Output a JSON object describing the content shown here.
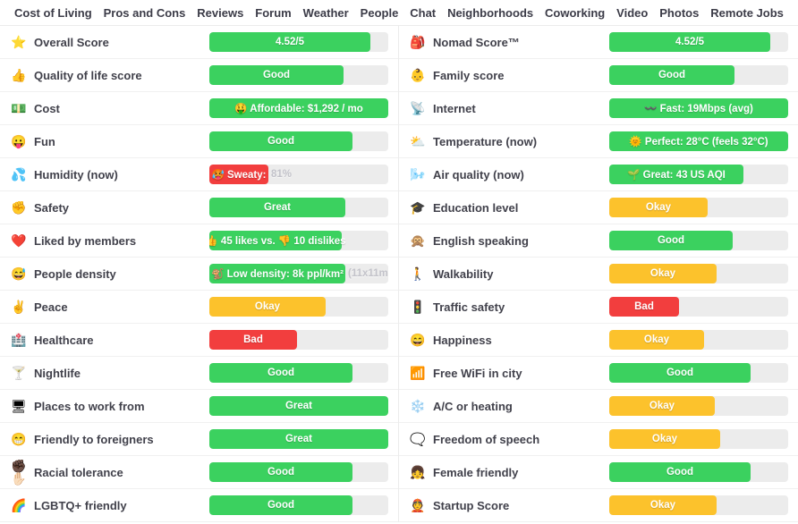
{
  "nav": {
    "items": [
      "Cost of Living",
      "Pros and Cons",
      "Reviews",
      "Forum",
      "Weather",
      "People",
      "Chat",
      "Neighborhoods",
      "Coworking",
      "Video",
      "Photos",
      "Remote Jobs"
    ]
  },
  "colors": {
    "green": "#3bd15f",
    "yellow": "#fcc22c",
    "red": "#f23e3e",
    "track": "#ececec",
    "overflow_text": "#c3c3ca"
  },
  "columns": {
    "left": [
      {
        "icon": "⭐",
        "icon_name": "star-icon",
        "label": "Overall Score",
        "value": "4.52/5",
        "color": "green",
        "fill": 90
      },
      {
        "icon": "👍",
        "icon_name": "thumbs-up-icon",
        "label": "Quality of life score",
        "value": "Good",
        "color": "green",
        "fill": 75
      },
      {
        "icon": "💵",
        "icon_name": "banknote-icon",
        "label": "Cost",
        "value": "🤑 Affordable: $1,292 / mo",
        "color": "green",
        "fill": 100
      },
      {
        "icon": "😛",
        "icon_name": "fun-face-icon",
        "label": "Fun",
        "value": "Good",
        "color": "green",
        "fill": 80
      },
      {
        "icon": "💦",
        "icon_name": "sweat-drops-icon",
        "label": "Humidity (now)",
        "value": "🥵 Sweaty:",
        "color": "red",
        "fill": 33,
        "overflow": "81%"
      },
      {
        "icon": "✊",
        "icon_name": "fist-icon",
        "label": "Safety",
        "value": "Great",
        "color": "green",
        "fill": 76
      },
      {
        "icon": "❤️",
        "icon_name": "heart-icon",
        "label": "Liked by members",
        "value": "👍 45 likes vs. 👎 10 dislikes",
        "color": "green",
        "fill": 74
      },
      {
        "icon": "😅",
        "icon_name": "sweat-smile-icon",
        "label": "People density",
        "value": "🐒 Low density: 8k ppl/km²",
        "color": "green",
        "fill": 76,
        "overflow": "(11x11m"
      },
      {
        "icon": "✌️",
        "icon_name": "peace-hand-icon",
        "label": "Peace",
        "value": "Okay",
        "color": "yellow",
        "fill": 65
      },
      {
        "icon": "🏥",
        "icon_name": "hospital-icon",
        "label": "Healthcare",
        "value": "Bad",
        "color": "red",
        "fill": 49
      },
      {
        "icon": "🍸",
        "icon_name": "cocktail-icon",
        "label": "Nightlife",
        "value": "Good",
        "color": "green",
        "fill": 80
      },
      {
        "icon": "🖥",
        "icon_name": "computer-icon",
        "label": "Places to work from",
        "value": "Great",
        "color": "green",
        "fill": 100
      },
      {
        "icon": "😁",
        "icon_name": "grinning-face-icon",
        "label": "Friendly to foreigners",
        "value": "Great",
        "color": "green",
        "fill": 100
      },
      {
        "icon": "✊🏿✋🏻",
        "icon_name": "racial-tolerance-hands-icon",
        "label": "Racial tolerance",
        "value": "Good",
        "color": "green",
        "fill": 80
      },
      {
        "icon": "🌈",
        "icon_name": "rainbow-icon",
        "label": "LGBTQ+ friendly",
        "value": "Good",
        "color": "green",
        "fill": 80
      }
    ],
    "right": [
      {
        "icon": "🎒",
        "icon_name": "backpack-icon",
        "label": "Nomad Score™",
        "value": "4.52/5",
        "color": "green",
        "fill": 90
      },
      {
        "icon": "👶",
        "icon_name": "baby-icon",
        "label": "Family score",
        "value": "Good",
        "color": "green",
        "fill": 70
      },
      {
        "icon": "📡",
        "icon_name": "satellite-dish-icon",
        "label": "Internet",
        "value": "〰️ Fast: 19Mbps (avg)",
        "color": "green",
        "fill": 100
      },
      {
        "icon": "⛅",
        "icon_name": "sun-cloud-icon",
        "label": "Temperature (now)",
        "value": "🌞 Perfect: 28°C (feels 32°C)",
        "color": "green",
        "fill": 100
      },
      {
        "icon": "🌬️",
        "icon_name": "wind-face-icon",
        "label": "Air quality (now)",
        "value": "🌱 Great: 43 US AQI",
        "color": "green",
        "fill": 75
      },
      {
        "icon": "🎓",
        "icon_name": "graduation-cap-icon",
        "label": "Education level",
        "value": "Okay",
        "color": "yellow",
        "fill": 55
      },
      {
        "icon": "🙊",
        "icon_name": "speak-no-evil-monkey-icon",
        "label": "English speaking",
        "value": "Good",
        "color": "green",
        "fill": 69
      },
      {
        "icon": "🚶",
        "icon_name": "walking-person-icon",
        "label": "Walkability",
        "value": "Okay",
        "color": "yellow",
        "fill": 60
      },
      {
        "icon": "🚦",
        "icon_name": "traffic-light-icon",
        "label": "Traffic safety",
        "value": "Bad",
        "color": "red",
        "fill": 39
      },
      {
        "icon": "😄",
        "icon_name": "happy-face-icon",
        "label": "Happiness",
        "value": "Okay",
        "color": "yellow",
        "fill": 53
      },
      {
        "icon": "📶",
        "icon_name": "signal-bars-icon",
        "label": "Free WiFi in city",
        "value": "Good",
        "color": "green",
        "fill": 79
      },
      {
        "icon": "❄️",
        "icon_name": "snowflake-icon",
        "label": "A/C or heating",
        "value": "Okay",
        "color": "yellow",
        "fill": 59
      },
      {
        "icon": "🗨️",
        "icon_name": "speech-bubble-icon",
        "label": "Freedom of speech",
        "value": "Okay",
        "color": "yellow",
        "fill": 62
      },
      {
        "icon": "👧",
        "icon_name": "girl-icon",
        "label": "Female friendly",
        "value": "Good",
        "color": "green",
        "fill": 79
      },
      {
        "icon": "👲",
        "icon_name": "red-cap-face-icon",
        "label": "Startup Score",
        "value": "Okay",
        "color": "yellow",
        "fill": 60
      }
    ]
  }
}
